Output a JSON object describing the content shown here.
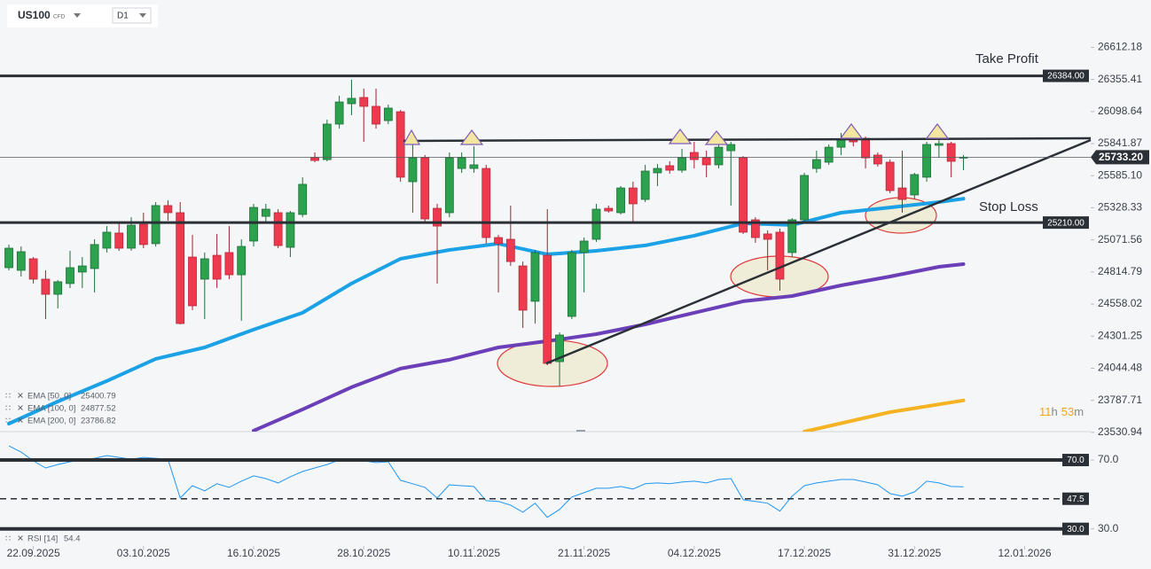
{
  "header": {
    "symbol": "US100",
    "symbol_type": "CFD",
    "timeframe": "D1"
  },
  "countdown": {
    "hours": 11,
    "hours_unit": "h",
    "minutes": 53,
    "minutes_unit": "m"
  },
  "chart_data": [
    {
      "type": "candlestick",
      "up_color": "#2ca24f",
      "down_color": "#ee3a4f",
      "open": [
        24849,
        24828,
        24920,
        24757,
        24636,
        24722,
        24814,
        24842,
        25005,
        25126,
        25005,
        25196,
        25041,
        25346,
        25289,
        24934,
        24757,
        24948,
        24970,
        24792,
        25062,
        25260,
        25289,
        25012,
        25275,
        25728,
        25714,
        25998,
        26161,
        26211,
        26140,
        26026,
        26097,
        25537,
        25728,
        25324,
        25289,
        25643,
        25643,
        25643,
        25090,
        25076,
        24863,
        24580,
        24948,
        24097,
        24459,
        24970,
        25076,
        25324,
        25289,
        25487,
        25395,
        25608,
        25665,
        25629,
        25771,
        25728,
        25672,
        25785,
        25728,
        25232,
        25119,
        25133,
        24970,
        25232,
        25643,
        25693,
        25813,
        25877,
        25884,
        25750,
        25693,
        25487,
        25431,
        25573,
        25828,
        25842,
        25728
      ],
      "high": [
        25034,
        25019,
        24934,
        24828,
        24750,
        24984,
        24934,
        25076,
        25182,
        25218,
        25253,
        25289,
        25374,
        25388,
        25374,
        25111,
        24970,
        25119,
        25182,
        25076,
        25360,
        25360,
        25317,
        25303,
        25573,
        25771,
        26033,
        26225,
        26353,
        26282,
        26282,
        26154,
        26111,
        25927,
        25750,
        25360,
        25771,
        25771,
        25821,
        25672,
        25111,
        25346,
        24898,
        24991,
        25317,
        24331,
        24991,
        25090,
        25360,
        25346,
        25502,
        25537,
        25672,
        25679,
        25700,
        25799,
        25856,
        25785,
        25927,
        25856,
        25742,
        25253,
        25147,
        25161,
        25246,
        25608,
        25785,
        25835,
        25927,
        25913,
        25898,
        25771,
        25714,
        25785,
        25608,
        25856,
        25870,
        25856,
        25750
      ],
      "low": [
        24828,
        24778,
        24722,
        24438,
        24523,
        24686,
        24686,
        24651,
        24970,
        24984,
        24984,
        25005,
        25019,
        25225,
        24395,
        24509,
        24438,
        24686,
        24757,
        24424,
        25019,
        25218,
        25005,
        24934,
        25253,
        25693,
        25700,
        25962,
        26069,
        25856,
        25962,
        25998,
        25537,
        25289,
        25218,
        24722,
        25253,
        25608,
        25608,
        25041,
        24651,
        24863,
        24367,
        24402,
        24069,
        23899,
        24438,
        24651,
        25055,
        25289,
        25275,
        25218,
        25374,
        25502,
        25601,
        25608,
        25643,
        25573,
        25643,
        25346,
        25119,
        25048,
        24828,
        24665,
        24934,
        25218,
        25608,
        25672,
        25750,
        25820,
        25643,
        25658,
        25445,
        25289,
        25395,
        25537,
        25728,
        25573,
        25629
      ],
      "close": [
        25005,
        24977,
        24757,
        24636,
        24736,
        24849,
        24863,
        25034,
        25133,
        25005,
        25189,
        25034,
        25346,
        25289,
        24402,
        24544,
        24920,
        24757,
        24792,
        25019,
        25331,
        25317,
        25026,
        25289,
        25516,
        25707,
        25998,
        26175,
        26204,
        26140,
        25998,
        26126,
        25573,
        25728,
        25239,
        25182,
        25728,
        25728,
        25672,
        25090,
        25041,
        24898,
        24509,
        24970,
        24083,
        24310,
        24970,
        25062,
        25317,
        25303,
        25487,
        25360,
        25622,
        25643,
        25629,
        25728,
        25714,
        25672,
        25813,
        25835,
        25133,
        25090,
        25076,
        24757,
        25232,
        25587,
        25714,
        25813,
        25877,
        25856,
        25728,
        25679,
        25466,
        25395,
        25594,
        25835,
        25842,
        25700,
        25733.2
      ],
      "xlim": [
        -0.725,
        88.4
      ],
      "xticks": [
        {
          "value": 2,
          "label": "22.09.2025"
        },
        {
          "value": 11,
          "label": "03.10.2025"
        },
        {
          "value": 20,
          "label": "16.10.2025"
        },
        {
          "value": 29,
          "label": "28.10.2025"
        },
        {
          "value": 38,
          "label": "10.11.2025"
        },
        {
          "value": 47,
          "label": "21.11.2025"
        },
        {
          "value": 56,
          "label": "04.12.2025"
        },
        {
          "value": 65,
          "label": "17.12.2025"
        },
        {
          "value": 74,
          "label": "31.12.2025"
        },
        {
          "value": 83,
          "label": "12.01.2026"
        }
      ],
      "ylim": [
        23537,
        26991
      ],
      "yticks": [
        26612.18,
        26355.41,
        26098.64,
        25841.87,
        {
          "value": 25585.1,
          "label": "25585.10"
        },
        25328.33,
        25071.56,
        24814.79,
        24558.02,
        24301.25,
        24044.48,
        23787.71,
        23530.94
      ],
      "last_price": {
        "value": 25733.2,
        "label": "25733.20"
      },
      "levels": [
        {
          "value": 26384,
          "label": "26384.00",
          "annotation": "Take Profit"
        },
        {
          "value": 25210,
          "label": "25210.00",
          "annotation": "Stop Loss"
        }
      ],
      "series": [
        {
          "name": "EMA [50, 0]",
          "legend_value": 25400.79,
          "color": "#1ba1e6",
          "x": [
            0,
            4,
            8,
            12,
            16,
            20,
            24,
            28,
            32,
            36,
            40,
            44,
            48,
            52,
            56,
            60,
            64,
            68,
            72,
            76,
            78
          ],
          "values": [
            23601,
            23778,
            23942,
            24119,
            24211,
            24353,
            24488,
            24722,
            24920,
            24991,
            25041,
            24956,
            24984,
            25027,
            25105,
            25204,
            25190,
            25289,
            25331,
            25374,
            25400.79
          ]
        },
        {
          "name": "EMA [100, 0]",
          "legend_value": 24877.52,
          "color": "#6a3fb8",
          "x": [
            20,
            24,
            28,
            32,
            36,
            40,
            44,
            48,
            52,
            56,
            60,
            64,
            68,
            72,
            76,
            78
          ],
          "values": [
            23544,
            23715,
            23892,
            24041,
            24112,
            24211,
            24261,
            24317,
            24395,
            24488,
            24580,
            24622,
            24707,
            24778,
            24856,
            24877.52
          ]
        },
        {
          "name": "EMA [200, 0]",
          "legend_value": 23786.82,
          "color": "#f5b324",
          "x": [
            65,
            72,
            78
          ],
          "values": [
            23537,
            23693,
            23786.82
          ]
        }
      ]
    },
    {
      "type": "line",
      "color": "#2196f3",
      "name": "RSI [14]",
      "legend_value": 54.4,
      "values": [
        78.2,
        74.6,
        69.5,
        65.4,
        67.4,
        69.0,
        70.0,
        71.0,
        72.6,
        71.5,
        70.5,
        71.5,
        71.0,
        70.5,
        47.9,
        55.1,
        52.1,
        56.2,
        54.1,
        57.7,
        60.8,
        59.2,
        56.7,
        60.3,
        63.3,
        65.4,
        67.4,
        70.0,
        70.5,
        69.5,
        68.5,
        69.0,
        58.2,
        56.2,
        54.1,
        47.9,
        55.6,
        55.1,
        54.6,
        46.4,
        45.9,
        43.8,
        39.7,
        44.9,
        36.7,
        41.3,
        48.5,
        51.0,
        53.6,
        53.6,
        54.6,
        53.1,
        56.2,
        56.7,
        56.2,
        57.2,
        57.7,
        56.7,
        58.7,
        59.2,
        46.9,
        45.9,
        44.9,
        40.3,
        49.0,
        55.1,
        56.7,
        57.7,
        58.7,
        58.7,
        57.2,
        55.6,
        50.5,
        49.0,
        51.5,
        57.7,
        56.7,
        54.6,
        54.4
      ],
      "ylim": [
        18,
        86.5
      ],
      "yticks": [
        {
          "value": 70,
          "label": "70.0"
        },
        {
          "value": 30,
          "label": "30.0"
        }
      ],
      "levels": [
        {
          "value": 70,
          "label": "70.0",
          "style": "solid"
        },
        {
          "value": 47.5,
          "label": "47.5",
          "style": "dashed"
        },
        {
          "value": 30,
          "label": "30.0",
          "style": "solid"
        }
      ]
    }
  ]
}
